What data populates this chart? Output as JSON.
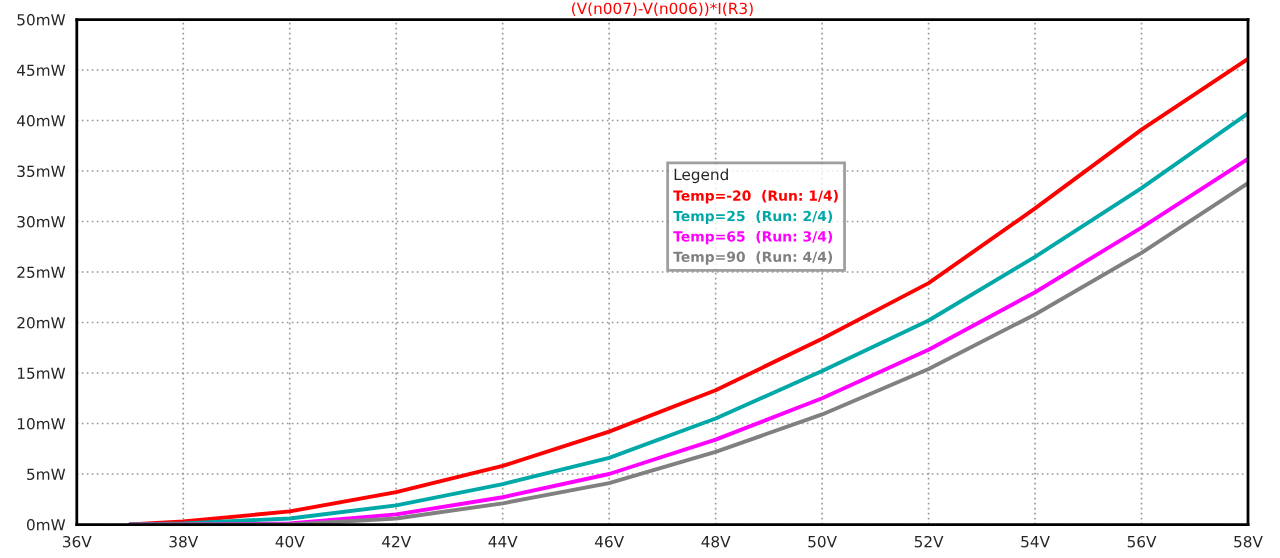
{
  "chart_data": {
    "type": "line",
    "title": "(V(n007)-V(n006))*I(R3)",
    "legend_title": "Legend",
    "x": [
      37,
      38,
      40,
      42,
      44,
      46,
      48,
      50,
      52,
      54,
      56,
      58
    ],
    "series": [
      {
        "name": "Temp=-20  (Run: 1/4)",
        "color": "#ff0000",
        "values": [
          0,
          0.3,
          1.3,
          3.2,
          5.8,
          9.2,
          13.3,
          18.4,
          23.9,
          31.3,
          39.1,
          46.1
        ]
      },
      {
        "name": "Temp=25  (Run: 2/4)",
        "color": "#00a8a8",
        "values": [
          0,
          0.1,
          0.6,
          1.9,
          4.0,
          6.6,
          10.5,
          15.2,
          20.2,
          26.5,
          33.3,
          40.7
        ]
      },
      {
        "name": "Temp=65  (Run: 3/4)",
        "color": "#ff00ff",
        "values": [
          0,
          0,
          0.1,
          1.0,
          2.7,
          5.0,
          8.4,
          12.5,
          17.3,
          23.0,
          29.4,
          36.2
        ]
      },
      {
        "name": "Temp=90  (Run: 4/4)",
        "color": "#808080",
        "values": [
          0,
          0,
          0,
          0.6,
          2.1,
          4.1,
          7.2,
          10.9,
          15.4,
          20.8,
          26.9,
          33.8
        ]
      }
    ],
    "xlim": [
      36,
      58
    ],
    "ylim": [
      0,
      50
    ],
    "xticks": [
      {
        "value": 36,
        "label": "36V"
      },
      {
        "value": 38,
        "label": "38V"
      },
      {
        "value": 40,
        "label": "40V"
      },
      {
        "value": 42,
        "label": "42V"
      },
      {
        "value": 44,
        "label": "44V"
      },
      {
        "value": 46,
        "label": "46V"
      },
      {
        "value": 48,
        "label": "48V"
      },
      {
        "value": 50,
        "label": "50V"
      },
      {
        "value": 52,
        "label": "52V"
      },
      {
        "value": 54,
        "label": "54V"
      },
      {
        "value": 56,
        "label": "56V"
      },
      {
        "value": 58,
        "label": "58V"
      }
    ],
    "yticks": [
      {
        "value": 0,
        "label": "0mW"
      },
      {
        "value": 5,
        "label": "5mW"
      },
      {
        "value": 10,
        "label": "10mW"
      },
      {
        "value": 15,
        "label": "15mW"
      },
      {
        "value": 20,
        "label": "20mW"
      },
      {
        "value": 25,
        "label": "25mW"
      },
      {
        "value": 30,
        "label": "30mW"
      },
      {
        "value": 35,
        "label": "35mW"
      },
      {
        "value": 40,
        "label": "40mW"
      },
      {
        "value": 45,
        "label": "45mW"
      },
      {
        "value": 50,
        "label": "50mW"
      }
    ],
    "grid": true,
    "legend": "top",
    "marker": "none",
    "line_style": "solid"
  }
}
